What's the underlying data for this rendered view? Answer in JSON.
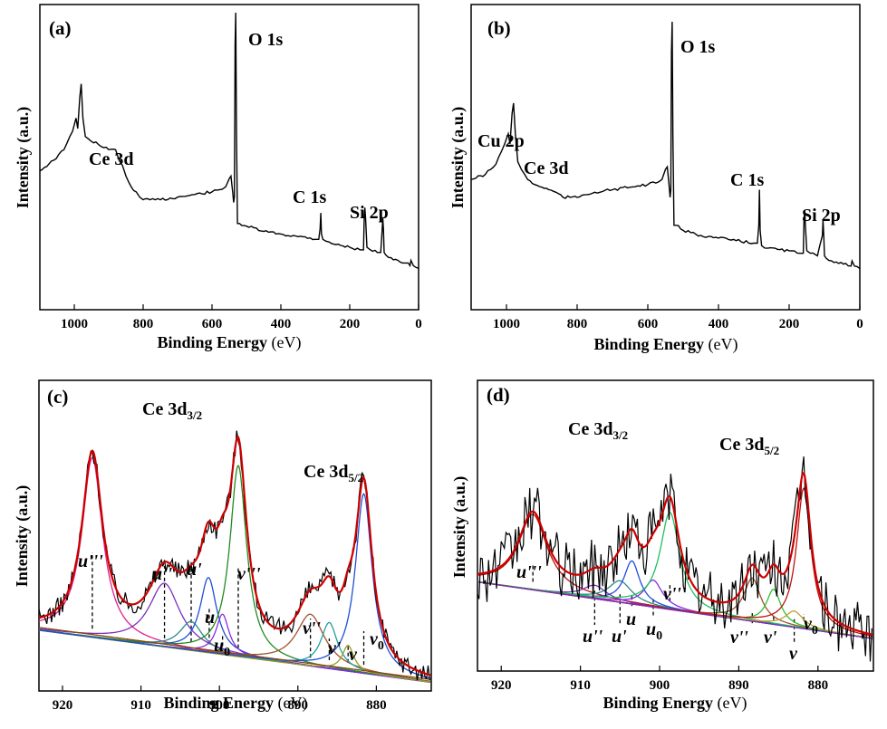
{
  "chart_data": [
    {
      "type": "line",
      "panel": "(a)",
      "xlabel": "Binding Energy",
      "xlabel_unit": "(eV)",
      "ylabel": "Intensity (a.u.)",
      "xlim": [
        1100,
        0
      ],
      "x_ticks": [
        1000,
        800,
        600,
        400,
        200,
        0
      ],
      "x_tick_labels": [
        "1000",
        "800",
        "600",
        "400",
        "200",
        "0"
      ],
      "annotations": [
        {
          "text": "O 1s",
          "x": 532
        },
        {
          "text": "Ce 3d",
          "x": 885
        },
        {
          "text": "C 1s",
          "x": 284
        },
        {
          "text": "Si 2p",
          "x": 130
        }
      ],
      "series": [
        {
          "color": "#000000",
          "x": [
            1100,
            1060,
            1030,
            1005,
            995,
            990,
            984,
            980,
            975,
            968,
            958,
            930,
            900,
            880,
            870,
            860,
            850,
            835,
            820,
            810,
            800,
            780,
            750,
            700,
            650,
            600,
            570,
            560,
            550,
            545,
            540,
            537,
            535,
            533,
            531,
            529,
            526,
            520,
            500,
            450,
            400,
            350,
            330,
            300,
            290,
            286,
            284,
            282,
            278,
            260,
            240,
            200,
            170,
            160,
            158,
            156,
            154,
            150,
            140,
            120,
            110,
            106,
            104,
            102,
            100,
            95,
            80,
            60,
            40,
            30,
            25,
            22,
            15,
            0
          ],
          "y": [
            40,
            44,
            48,
            55,
            60,
            56,
            68,
            73,
            60,
            53,
            52,
            50,
            48,
            48,
            44,
            42,
            38,
            34,
            32,
            30,
            29,
            29,
            29,
            30,
            31,
            32,
            33,
            34,
            37,
            38,
            32,
            28,
            30,
            88,
            100,
            55,
            20,
            20,
            19,
            17,
            16,
            15,
            15,
            14,
            14,
            18,
            24,
            16,
            14,
            13,
            12,
            11,
            10,
            10,
            22,
            26,
            22,
            11,
            10,
            9,
            9,
            17,
            22,
            18,
            9,
            8,
            7,
            6,
            5,
            5,
            4,
            6,
            4,
            3
          ]
        }
      ]
    },
    {
      "type": "line",
      "panel": "(b)",
      "xlabel": "Binding Energy",
      "xlabel_unit": "(eV)",
      "ylabel": "Intensity (a.u.)",
      "xlim": [
        1100,
        0
      ],
      "x_ticks": [
        1000,
        800,
        600,
        400,
        200,
        0
      ],
      "x_tick_labels": [
        "1000",
        "800",
        "600",
        "400",
        "200",
        "0"
      ],
      "annotations": [
        {
          "text": "O 1s",
          "x": 532
        },
        {
          "text": "Cu 2p",
          "x": 935
        },
        {
          "text": "Ce 3d",
          "x": 885
        },
        {
          "text": "C 1s",
          "x": 284
        },
        {
          "text": "Si 2p",
          "x": 130
        }
      ],
      "series": [
        {
          "color": "#000000",
          "x": [
            1100,
            1060,
            1030,
            1005,
            995,
            990,
            984,
            980,
            975,
            968,
            958,
            940,
            920,
            900,
            880,
            860,
            840,
            820,
            800,
            780,
            750,
            700,
            650,
            600,
            570,
            560,
            550,
            545,
            540,
            537,
            535,
            533,
            531,
            529,
            526,
            520,
            500,
            450,
            400,
            350,
            300,
            290,
            286,
            284,
            282,
            278,
            260,
            200,
            170,
            160,
            158,
            156,
            154,
            150,
            140,
            120,
            106,
            104,
            102,
            100,
            95,
            80,
            40,
            25,
            22,
            15,
            0
          ],
          "y": [
            38,
            40,
            44,
            52,
            56,
            52,
            64,
            68,
            56,
            45,
            42,
            38,
            36,
            35,
            34,
            33,
            31,
            31,
            31,
            32,
            33,
            34,
            35,
            36,
            37,
            38,
            42,
            43,
            36,
            31,
            34,
            88,
            100,
            55,
            20,
            20,
            18,
            16,
            15,
            14,
            13,
            13,
            20,
            34,
            18,
            12,
            11,
            10,
            9,
            9,
            22,
            26,
            20,
            10,
            9,
            8,
            16,
            22,
            16,
            8,
            7,
            6,
            5,
            4,
            6,
            4,
            3
          ]
        }
      ]
    },
    {
      "type": "line",
      "panel": "(c)",
      "xlabel": "Binding Energy",
      "xlabel_unit": "(eV)",
      "ylabel": "Intensity (a.u.)",
      "xlim": [
        923,
        873
      ],
      "x_ticks": [
        920,
        910,
        900,
        890,
        880
      ],
      "x_tick_labels": [
        "920",
        "910",
        "900",
        "890",
        "880"
      ],
      "region_labels": [
        {
          "text": "Ce 3d",
          "sub": "3/2"
        },
        {
          "text": "Ce 3d",
          "sub": "5/2"
        }
      ],
      "components": [
        {
          "label": "u'''",
          "x": 916.2
        },
        {
          "label": "u''",
          "x": 907.0
        },
        {
          "label": "u'",
          "x": 903.6
        },
        {
          "label": "u",
          "x": 901.3
        },
        {
          "label": "u",
          "sub": "0",
          "x": 899.6
        },
        {
          "label": "v'''",
          "x": 897.6
        },
        {
          "label": "v''",
          "x": 888.4
        },
        {
          "label": "v'",
          "x": 886.0
        },
        {
          "label": "v",
          "x": 883.6
        },
        {
          "label": "v",
          "sub": "0",
          "x": 881.6
        }
      ],
      "series": [
        {
          "color": "#000000",
          "x": [],
          "y": []
        },
        {
          "color": "#cc0000",
          "x": [],
          "y": []
        }
      ]
    },
    {
      "type": "line",
      "panel": "(d)",
      "xlabel": "Binding Energy",
      "xlabel_unit": "(eV)",
      "ylabel": "Intensity (a.u.)",
      "xlim": [
        923,
        873
      ],
      "x_ticks": [
        920,
        910,
        900,
        890,
        880
      ],
      "x_tick_labels": [
        "920",
        "910",
        "900",
        "890",
        "880"
      ],
      "region_labels": [
        {
          "text": "Ce 3d",
          "sub": "3/2"
        },
        {
          "text": "Ce 3d",
          "sub": "5/2"
        }
      ],
      "components": [
        {
          "label": "u'''",
          "x": 916.0
        },
        {
          "label": "u''",
          "x": 908.2
        },
        {
          "label": "u'",
          "x": 905.0
        },
        {
          "label": "u",
          "x": 903.5
        },
        {
          "label": "u",
          "sub": "0",
          "x": 900.8
        },
        {
          "label": "v'''",
          "x": 898.7
        },
        {
          "label": "v''",
          "x": 888.3
        },
        {
          "label": "v'",
          "x": 885.6
        },
        {
          "label": "v",
          "x": 883.0
        },
        {
          "label": "v",
          "sub": "0",
          "x": 881.8
        }
      ],
      "series": [
        {
          "color": "#000000",
          "x": [],
          "y": []
        },
        {
          "color": "#cc0000",
          "x": [],
          "y": []
        }
      ]
    }
  ],
  "colors": {
    "frame": "#000000",
    "envelope": "#cc0000",
    "background": "#8b4513",
    "u3": "#e0218a",
    "u2": "#7b2fbe",
    "u1": "#2a8a8a",
    "u": "#1f4fd8",
    "u0": "#8a2be2",
    "v3": "#228b22",
    "v2": "#a0522d",
    "v1": "#20a0a0",
    "v": "#9a9a20",
    "v0": "#1f4fd8",
    "d_u3": "#c01010",
    "d_v3": "#20c060",
    "d_v1": "#30c030",
    "d_v": "#c0a030"
  }
}
